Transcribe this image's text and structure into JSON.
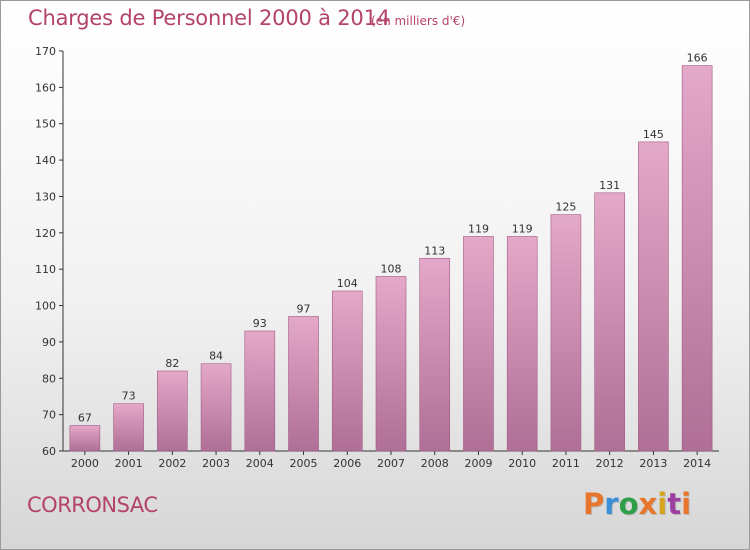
{
  "header": {
    "title": "Charges de Personnel 2000 à 2014",
    "subtitle": "(en milliers d'€)"
  },
  "footer": {
    "commune": "CORRONSAC",
    "logo": "Proxiti"
  },
  "colors": {
    "title": "#b4426b",
    "bar_top": "#e4a8c8",
    "bar_bottom": "#b06f96",
    "logo": [
      "#e7762c",
      "#3a8fd6",
      "#2e9e48",
      "#e7762c",
      "#d6a51e",
      "#9c3fa1",
      "#e7762c"
    ]
  },
  "chart_data": {
    "type": "bar",
    "categories": [
      "2000",
      "2001",
      "2002",
      "2003",
      "2004",
      "2005",
      "2006",
      "2007",
      "2008",
      "2009",
      "2010",
      "2011",
      "2012",
      "2013",
      "2014"
    ],
    "values": [
      67,
      73,
      82,
      84,
      93,
      97,
      104,
      108,
      113,
      119,
      119,
      125,
      131,
      145,
      166
    ],
    "title": "Charges de Personnel 2000 à 2014",
    "subtitle": "(en milliers d'€)",
    "xlabel": "",
    "ylabel": "",
    "ylim": [
      60,
      170
    ],
    "yticks": [
      60,
      70,
      80,
      90,
      100,
      110,
      120,
      130,
      140,
      150,
      160,
      170
    ],
    "grid": false,
    "legend": "none"
  }
}
